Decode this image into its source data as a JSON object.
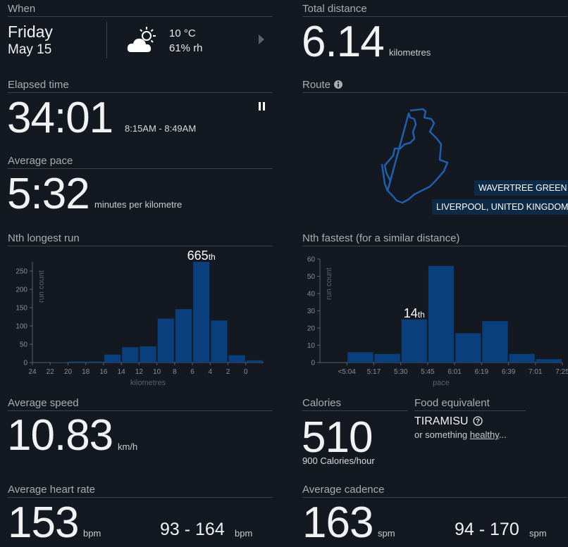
{
  "when": {
    "title": "When",
    "day": "Friday",
    "date": "May 15",
    "weather_icon": "partly-cloudy-icon",
    "temperature": "10 °C",
    "humidity": "61% rh",
    "next_icon": "triangle-right-icon"
  },
  "total_distance": {
    "title": "Total distance",
    "value": "6.14",
    "unit": "kilometres"
  },
  "elapsed": {
    "title": "Elapsed time",
    "value": "34:01",
    "range": "8:15AM - 8:49AM",
    "pause_icon": "pause-icon"
  },
  "route": {
    "title": "Route",
    "info_icon": "info-icon",
    "place": "WAVERTREE GREEN",
    "region": "LIVERPOOL, UNITED KINGDOM",
    "color": "#1f5fae"
  },
  "pace": {
    "title": "Average pace",
    "value": "5:32",
    "unit": "minutes per kilometre"
  },
  "nth_longest": {
    "title": "Nth longest run",
    "rank": "665",
    "suffix": "th"
  },
  "nth_fastest": {
    "title": "Nth fastest (for a similar distance)",
    "rank": "14",
    "suffix": "th"
  },
  "speed": {
    "title": "Average speed",
    "value": "10.83",
    "unit": "km/h"
  },
  "calories": {
    "title": "Calories",
    "value": "510",
    "rate_value": "900",
    "rate_unit": "Calories/hour"
  },
  "food": {
    "title": "Food equivalent",
    "item": "TIRAMISU",
    "help_icon": "question-circle-icon",
    "or_text": "or something",
    "link_text": "healthy",
    "ellipsis": "..."
  },
  "heart_rate": {
    "title": "Average heart rate",
    "value": "153",
    "unit": "bpm",
    "range": "93 - 164",
    "range_unit": "bpm"
  },
  "cadence": {
    "title": "Average cadence",
    "value": "163",
    "unit": "spm",
    "range": "94 - 170",
    "range_unit": "spm"
  },
  "colors": {
    "background": "#141820",
    "bar": "#0a3f7d",
    "route_line": "#1f5fae"
  },
  "chart_data": [
    {
      "type": "bar",
      "title": "Nth longest run",
      "xlabel": "kilometres",
      "ylabel": "run count",
      "categories": [
        "24",
        "22",
        "20",
        "18",
        "16",
        "14",
        "12",
        "10",
        "8",
        "6",
        "4",
        "2",
        "0"
      ],
      "values": [
        0,
        1,
        3,
        3,
        22,
        42,
        44,
        120,
        146,
        275,
        115,
        20,
        6
      ],
      "ylim": [
        0,
        275
      ],
      "yticks": [
        0,
        50,
        100,
        150,
        200,
        250
      ],
      "highlight_index": 9,
      "highlight_label": "665th"
    },
    {
      "type": "bar",
      "title": "Nth fastest (for a similar distance)",
      "xlabel": "pace",
      "ylabel": "run count",
      "categories": [
        "<5:04",
        "5:17",
        "5:30",
        "5:45",
        "6:01",
        "6:19",
        "6:39",
        "7:01",
        "7:25"
      ],
      "values": [
        0,
        6,
        5,
        25,
        56,
        17,
        24,
        5,
        2
      ],
      "ylim": [
        0,
        60
      ],
      "yticks": [
        0,
        10,
        20,
        30,
        40,
        50,
        60
      ],
      "highlight_index": 3,
      "highlight_label": "14th"
    }
  ]
}
